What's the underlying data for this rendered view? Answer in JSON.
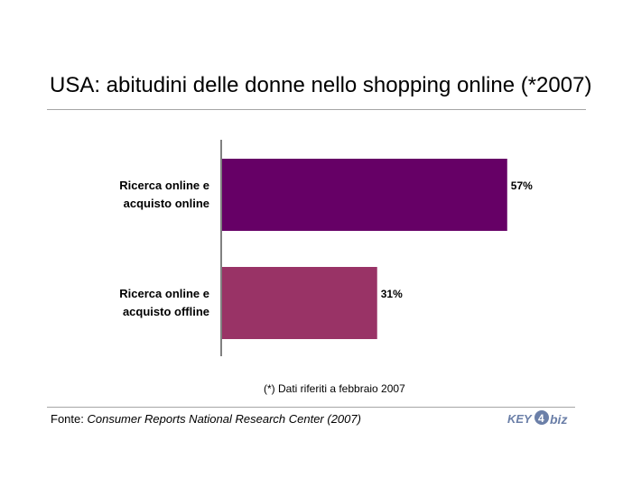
{
  "title": "USA: abitudini delle donne nello shopping online (*2007)",
  "chart_data": {
    "type": "bar",
    "orientation": "horizontal",
    "categories": [
      [
        "Ricerca online e",
        "acquisto online"
      ],
      [
        "Ricerca online e",
        "acquisto offline"
      ]
    ],
    "values": [
      57,
      31
    ],
    "value_labels": [
      "57%",
      "31%"
    ],
    "colors": [
      "#660066",
      "#993366"
    ],
    "xlim": [
      0,
      100
    ],
    "grid": false,
    "legend": "none"
  },
  "note": "(*) Dati riferiti a febbraio 2007",
  "source": {
    "prefix": "Fonte: ",
    "name": "Consumer Reports National Research Center (2007)"
  },
  "logo": {
    "text_left": "KEY",
    "digit": "4",
    "text_right": "biz",
    "color": "#6b7fa8"
  }
}
